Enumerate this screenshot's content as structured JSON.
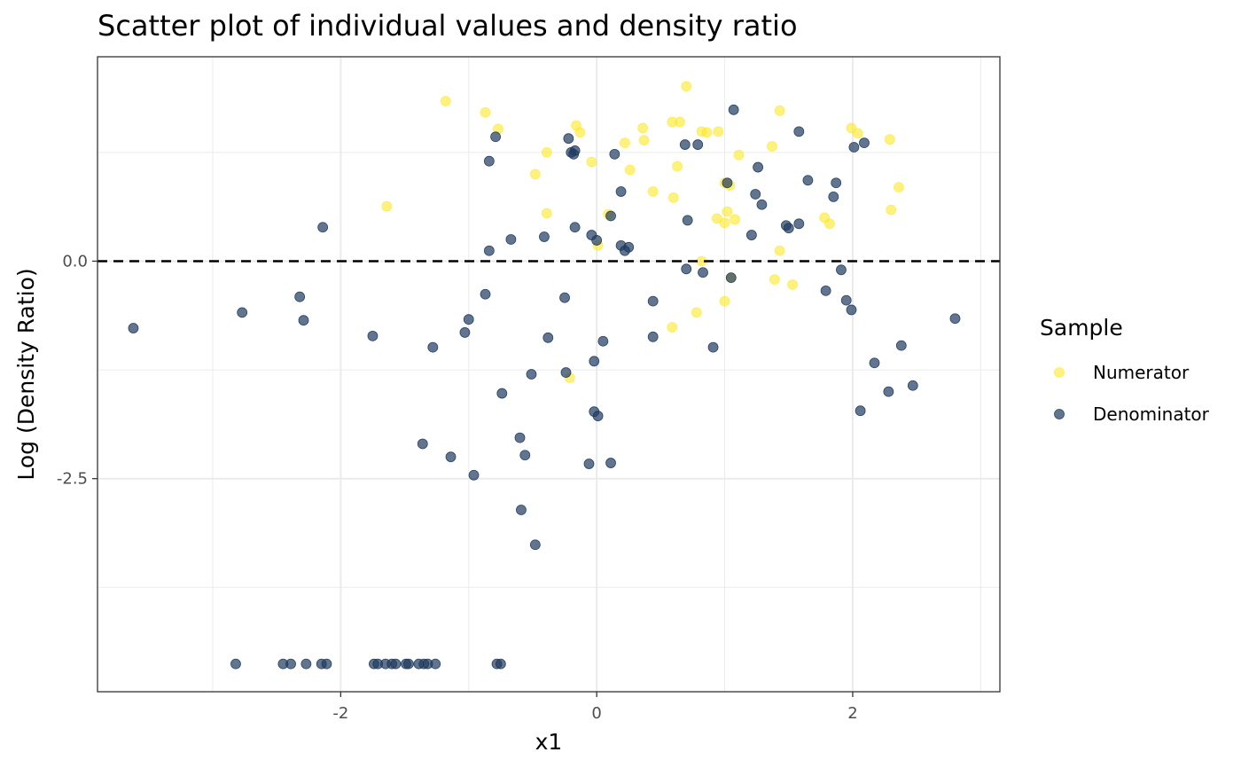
{
  "chart_data": {
    "type": "scatter",
    "title": "Scatter plot of individual values and density ratio",
    "xlabel": "x1",
    "ylabel": "Log (Density Ratio)",
    "xlim": [
      -3.9,
      3.15
    ],
    "ylim": [
      -4.95,
      2.35
    ],
    "x_ticks": [
      -2,
      0,
      2
    ],
    "x_tick_labels": [
      "-2",
      "0",
      "2"
    ],
    "y_ticks": [
      -2.5,
      0.0
    ],
    "y_tick_labels": [
      "-2.5",
      "0.0"
    ],
    "grid": true,
    "reference_line": {
      "y": 0,
      "style": "dashed",
      "color": "#000000"
    },
    "legend": {
      "title": "Sample",
      "position": "right"
    },
    "series": [
      {
        "name": "Numerator",
        "color": "#FDE725",
        "points": [
          [
            -1.18,
            1.84
          ],
          [
            -0.87,
            1.71
          ],
          [
            -0.77,
            1.52
          ],
          [
            -0.48,
            1.0
          ],
          [
            -0.39,
            1.25
          ],
          [
            -0.39,
            0.55
          ],
          [
            -1.64,
            0.63
          ],
          [
            -0.16,
            1.56
          ],
          [
            -0.13,
            1.48
          ],
          [
            0.22,
            1.36
          ],
          [
            0.26,
            1.05
          ],
          [
            0.36,
            1.53
          ],
          [
            0.37,
            1.39
          ],
          [
            0.59,
            1.6
          ],
          [
            0.65,
            1.6
          ],
          [
            0.7,
            2.01
          ],
          [
            0.6,
            0.73
          ],
          [
            0.63,
            1.09
          ],
          [
            0.82,
            1.49
          ],
          [
            0.86,
            1.48
          ],
          [
            0.95,
            1.49
          ],
          [
            0.44,
            0.8
          ],
          [
            0.09,
            0.54
          ],
          [
            0.01,
            0.18
          ],
          [
            -0.04,
            1.14
          ],
          [
            1.0,
            0.9
          ],
          [
            1.04,
            0.87
          ],
          [
            1.11,
            1.22
          ],
          [
            1.02,
            0.57
          ],
          [
            0.94,
            0.49
          ],
          [
            1.0,
            0.44
          ],
          [
            1.08,
            0.48
          ],
          [
            1.37,
            1.32
          ],
          [
            1.43,
            1.73
          ],
          [
            0.82,
            0.0
          ],
          [
            1.05,
            -0.19
          ],
          [
            1.39,
            -0.21
          ],
          [
            1.53,
            -0.27
          ],
          [
            1.43,
            0.12
          ],
          [
            1.78,
            0.5
          ],
          [
            1.82,
            0.43
          ],
          [
            1.99,
            1.53
          ],
          [
            2.04,
            1.47
          ],
          [
            2.29,
            1.4
          ],
          [
            2.36,
            0.85
          ],
          [
            2.3,
            0.59
          ],
          [
            1.0,
            -0.46
          ],
          [
            0.78,
            -0.59
          ],
          [
            0.59,
            -0.76
          ],
          [
            -0.21,
            -1.34
          ]
        ]
      },
      {
        "name": "Denominator",
        "color": "#1F3A60",
        "points": [
          [
            -3.62,
            -0.77
          ],
          [
            -2.77,
            -0.59
          ],
          [
            -2.32,
            -0.41
          ],
          [
            -2.29,
            -0.68
          ],
          [
            -2.14,
            0.39
          ],
          [
            -1.75,
            -0.86
          ],
          [
            -1.28,
            -0.99
          ],
          [
            -1.36,
            -2.1
          ],
          [
            -1.14,
            -2.25
          ],
          [
            -1.03,
            -0.82
          ],
          [
            -1.0,
            -0.67
          ],
          [
            -0.96,
            -2.46
          ],
          [
            -0.87,
            -0.38
          ],
          [
            -0.84,
            1.15
          ],
          [
            -0.84,
            0.12
          ],
          [
            -0.79,
            1.43
          ],
          [
            -0.74,
            -1.52
          ],
          [
            -0.67,
            0.25
          ],
          [
            -0.6,
            -2.03
          ],
          [
            -0.56,
            -2.23
          ],
          [
            -0.59,
            -2.86
          ],
          [
            -0.48,
            -3.26
          ],
          [
            -0.51,
            -1.3
          ],
          [
            -0.41,
            0.28
          ],
          [
            -0.38,
            -0.88
          ],
          [
            -0.25,
            -0.42
          ],
          [
            -0.24,
            -1.28
          ],
          [
            -0.22,
            1.41
          ],
          [
            -0.2,
            1.25
          ],
          [
            -0.18,
            1.23
          ],
          [
            -0.17,
            1.27
          ],
          [
            -0.17,
            0.39
          ],
          [
            -0.06,
            -2.33
          ],
          [
            -0.04,
            0.3
          ],
          [
            -0.02,
            -1.15
          ],
          [
            -0.02,
            -1.73
          ],
          [
            0.0,
            0.24
          ],
          [
            0.01,
            -1.78
          ],
          [
            0.05,
            -0.92
          ],
          [
            0.11,
            0.52
          ],
          [
            0.11,
            -2.32
          ],
          [
            0.14,
            1.23
          ],
          [
            0.19,
            0.8
          ],
          [
            0.19,
            0.18
          ],
          [
            0.22,
            0.12
          ],
          [
            0.25,
            0.16
          ],
          [
            0.44,
            -0.46
          ],
          [
            0.44,
            -0.87
          ],
          [
            0.69,
            1.34
          ],
          [
            0.79,
            1.34
          ],
          [
            0.7,
            -0.09
          ],
          [
            0.71,
            0.47
          ],
          [
            0.91,
            -0.99
          ],
          [
            0.83,
            -0.13
          ],
          [
            1.02,
            0.9
          ],
          [
            1.05,
            -0.19
          ],
          [
            1.07,
            1.74
          ],
          [
            1.21,
            0.3
          ],
          [
            1.24,
            0.77
          ],
          [
            1.26,
            1.08
          ],
          [
            1.29,
            0.65
          ],
          [
            1.48,
            0.41
          ],
          [
            1.5,
            0.38
          ],
          [
            1.58,
            1.49
          ],
          [
            1.58,
            0.43
          ],
          [
            1.65,
            0.93
          ],
          [
            1.79,
            -0.34
          ],
          [
            1.85,
            0.74
          ],
          [
            1.87,
            0.9
          ],
          [
            1.91,
            -0.1
          ],
          [
            1.95,
            -0.45
          ],
          [
            1.99,
            -0.56
          ],
          [
            2.01,
            1.31
          ],
          [
            2.06,
            -1.72
          ],
          [
            2.09,
            1.36
          ],
          [
            2.17,
            -1.17
          ],
          [
            2.28,
            -1.5
          ],
          [
            2.38,
            -0.97
          ],
          [
            2.47,
            -1.43
          ],
          [
            2.8,
            -0.66
          ],
          [
            -2.82,
            -4.63
          ],
          [
            -2.45,
            -4.63
          ],
          [
            -2.39,
            -4.63
          ],
          [
            -2.27,
            -4.63
          ],
          [
            -2.15,
            -4.63
          ],
          [
            -2.11,
            -4.63
          ],
          [
            -1.74,
            -4.63
          ],
          [
            -1.71,
            -4.63
          ],
          [
            -1.65,
            -4.63
          ],
          [
            -1.6,
            -4.63
          ],
          [
            -1.57,
            -4.63
          ],
          [
            -1.49,
            -4.63
          ],
          [
            -1.47,
            -4.63
          ],
          [
            -1.39,
            -4.63
          ],
          [
            -1.35,
            -4.63
          ],
          [
            -1.32,
            -4.63
          ],
          [
            -1.26,
            -4.63
          ],
          [
            -0.78,
            -4.63
          ],
          [
            -0.75,
            -4.63
          ]
        ]
      }
    ]
  }
}
